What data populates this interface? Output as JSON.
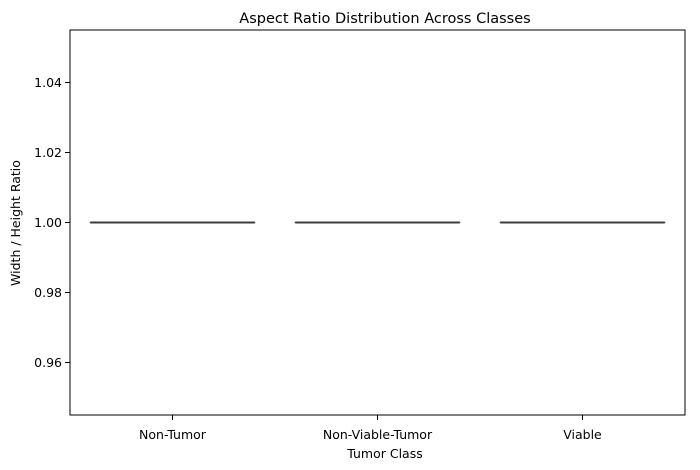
{
  "chart_data": {
    "type": "box",
    "title": "Aspect Ratio Distribution Across Classes",
    "xlabel": "Tumor Class",
    "ylabel": "Width / Height Ratio",
    "categories": [
      "Non-Tumor",
      "Non-Viable-Tumor",
      "Viable"
    ],
    "series": [
      {
        "category": "Non-Tumor",
        "min": 1.0,
        "q1": 1.0,
        "median": 1.0,
        "q3": 1.0,
        "max": 1.0
      },
      {
        "category": "Non-Viable-Tumor",
        "min": 1.0,
        "q1": 1.0,
        "median": 1.0,
        "q3": 1.0,
        "max": 1.0
      },
      {
        "category": "Viable",
        "min": 1.0,
        "q1": 1.0,
        "median": 1.0,
        "q3": 1.0,
        "max": 1.0
      }
    ],
    "ylim": [
      0.945,
      1.055
    ],
    "yticks": [
      0.96,
      0.98,
      1.0,
      1.02,
      1.04
    ],
    "ytick_labels": [
      "0.96",
      "0.98",
      "1.00",
      "1.02",
      "1.04"
    ],
    "grid": false,
    "line_color": "#3c3c3c",
    "axis_color": "#000000"
  }
}
